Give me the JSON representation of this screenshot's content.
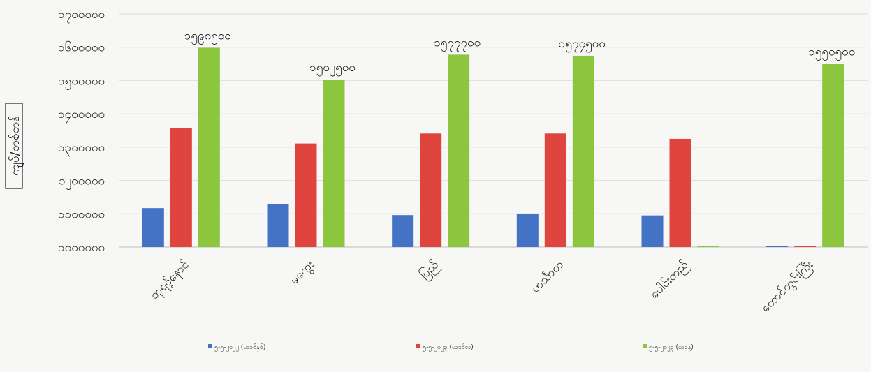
{
  "chart_data": {
    "type": "bar",
    "title": "",
    "xlabel": "",
    "ylabel": "ကျပ်/တစ်တန်",
    "ylim": [
      1000000,
      1700000
    ],
    "yticks": [
      "၁၀၀၀၀၀၀",
      "၁၁၀၀၀၀၀",
      "၁၂၀၀၀၀၀",
      "၁၃၀၀၀၀၀",
      "၁၄၀၀၀၀၀",
      "၁၅၀၀၀၀၀",
      "၁၆၀၀၀၀၀",
      "၁၇၀၀၀၀၀"
    ],
    "ytick_values": [
      1000000,
      1100000,
      1200000,
      1300000,
      1400000,
      1500000,
      1600000,
      1700000
    ],
    "grid": true,
    "legend_position": "bottom",
    "categories": [
      "ဘုရင့်နောင်",
      "မကွေး",
      "ပြည်",
      "ဟင်္သာတ",
      "ပေါင်းတည်",
      "တောင်တွင်းကြီး"
    ],
    "series": [
      {
        "name": "၅-၅-၂၀၂၂ (ယခင်နှစ်)",
        "color": "#4472c4",
        "values": [
          1117000,
          1129000,
          1096000,
          1100000,
          1095000,
          1000000
        ]
      },
      {
        "name": "၅-၅-၂၀၂၃ (ယခင်လ)",
        "color": "#e0443e",
        "values": [
          1357000,
          1311000,
          1341000,
          1341000,
          1325000,
          1000000
        ]
      },
      {
        "name": "၅-၅-၂၀၂၃ (ယနေ့)",
        "color": "#8cc63f",
        "values": [
          1598500,
          1502500,
          1577700,
          1574500,
          1000000,
          1550500
        ]
      }
    ],
    "data_labels": [
      "၁၅၉၈၅၀၀",
      "၁၅၀၂၅၀၀",
      "၁၅၇၇၇၀၀",
      "၁၅၇၄၅၀၀",
      "",
      "၁၅၅၀၅၀၀"
    ]
  }
}
